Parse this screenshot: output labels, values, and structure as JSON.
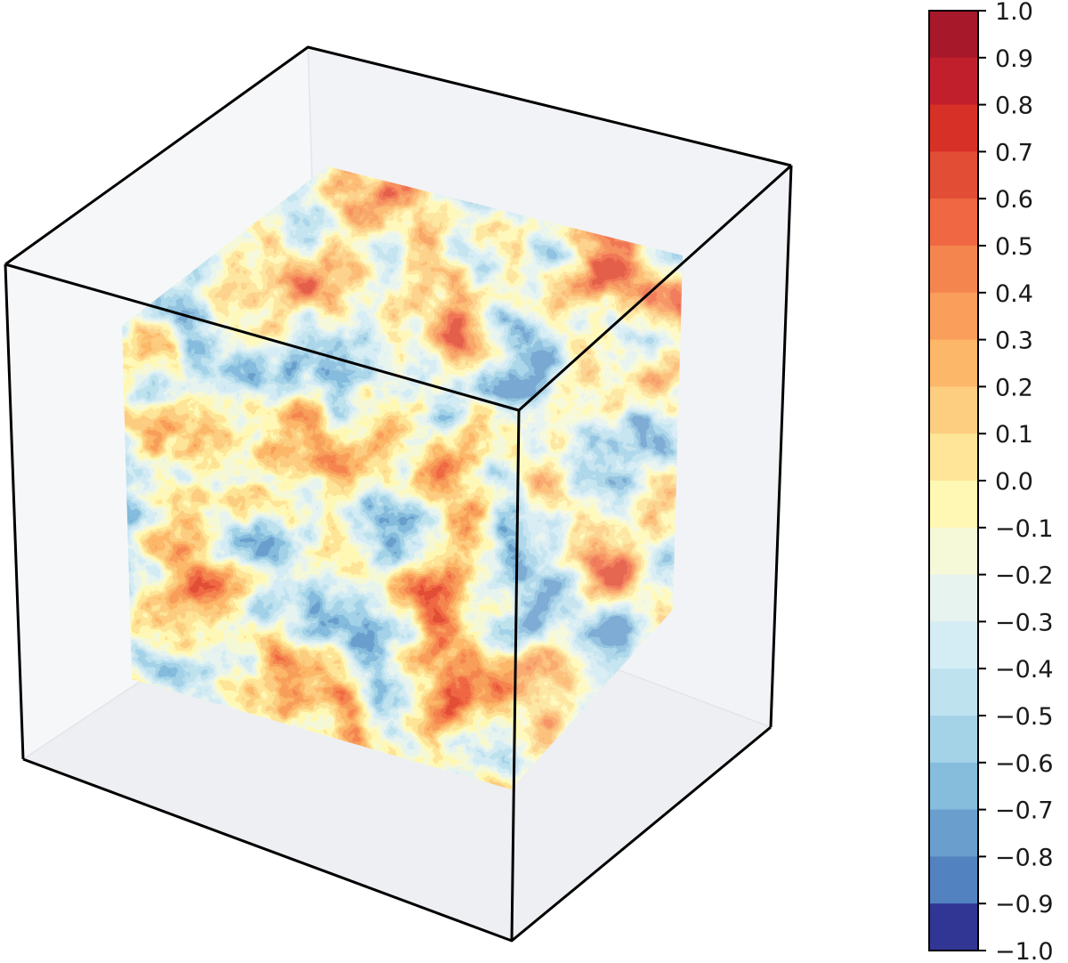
{
  "chart_data": {
    "type": "heatmap",
    "subtype": "3d-cube-filled-contour",
    "title": "",
    "xlabel": "",
    "ylabel": "",
    "colorbar": {
      "min": -1.0,
      "max": 1.0,
      "levels": 20,
      "tick_labels": [
        "1.0",
        "0.9",
        "0.8",
        "0.7",
        "0.6",
        "0.5",
        "0.4",
        "0.3",
        "0.2",
        "0.1",
        "0.0",
        "−0.1",
        "−0.2",
        "−0.3",
        "−0.4",
        "−0.5",
        "−0.6",
        "−0.7",
        "−0.8",
        "−0.9",
        "−1.0"
      ],
      "band_colors": [
        "#a6182a",
        "#c21f2d",
        "#d73027",
        "#e24d35",
        "#f06843",
        "#f5854f",
        "#f99e5b",
        "#fdb768",
        "#fdcd80",
        "#fee597",
        "#fff8b4",
        "#f5f9d8",
        "#e6f3ef",
        "#d4ecf4",
        "#bfe2ef",
        "#a4d3e8",
        "#86bcdc",
        "#6a9fcd",
        "#5282bf",
        "#416bb0",
        "#313695"
      ],
      "colormap": "RdYlBu_r"
    },
    "field_value_range": [
      -0.7,
      0.5
    ],
    "grid": false,
    "legend": "colorbar-right"
  }
}
